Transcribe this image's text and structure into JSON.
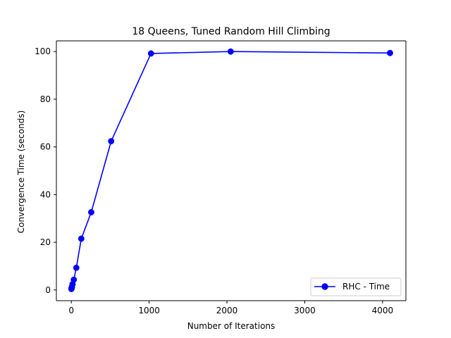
{
  "chart_data": {
    "type": "line",
    "title": "18 Queens, Tuned Random Hill Climbing",
    "xlabel": "Number of Iterations",
    "ylabel": "Convergence Time (seconds)",
    "xlim": [
      -192,
      4300
    ],
    "ylim": [
      -4.5,
      104.5
    ],
    "x_ticks": [
      0,
      1000,
      2000,
      3000,
      4000
    ],
    "y_ticks": [
      0,
      20,
      40,
      60,
      80,
      100
    ],
    "grid": false,
    "legend_position": "lower right",
    "series": [
      {
        "name": "RHC - Time",
        "color": "#0000ff",
        "marker": "circle",
        "x": [
          1,
          2,
          4,
          8,
          16,
          32,
          64,
          128,
          256,
          512,
          1024,
          2048,
          4096
        ],
        "y": [
          0.4,
          0.6,
          0.9,
          1.3,
          2.4,
          4.3,
          9.3,
          21.5,
          32.6,
          62.4,
          99.2,
          100.0,
          99.4
        ]
      }
    ]
  }
}
